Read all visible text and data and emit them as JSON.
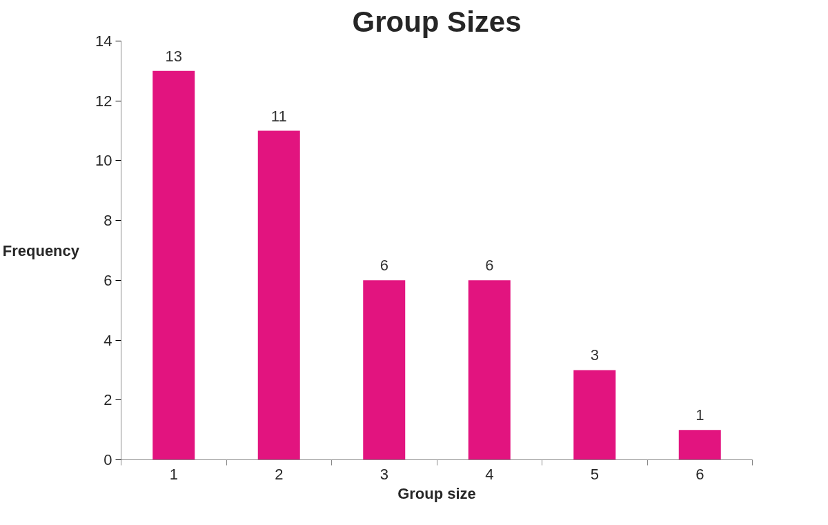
{
  "chart_data": {
    "type": "bar",
    "title": "Group Sizes",
    "xlabel": "Group size",
    "ylabel": "Frequency",
    "categories": [
      "1",
      "2",
      "3",
      "4",
      "5",
      "6"
    ],
    "values": [
      13,
      11,
      6,
      6,
      3,
      1
    ],
    "color": "#e2147f",
    "ylim": [
      0,
      14
    ],
    "yticks": [
      0,
      2,
      4,
      6,
      8,
      10,
      12,
      14
    ],
    "data_labels": true,
    "grid": false
  }
}
